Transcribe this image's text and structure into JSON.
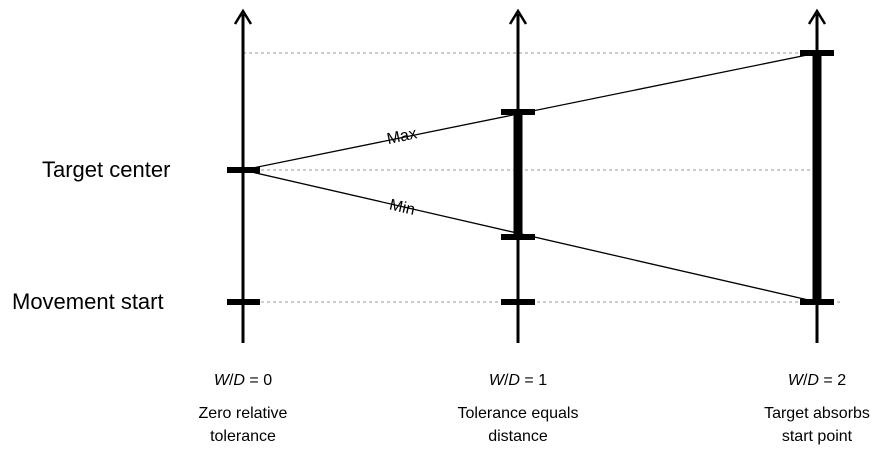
{
  "labels": {
    "target_center": "Target center",
    "movement_start": "Movement start"
  },
  "lines": {
    "max": "Max",
    "min": "Min"
  },
  "columns": [
    {
      "var_w": "W",
      "slash": "/",
      "var_d": "D",
      "eq": " = 0",
      "caption": [
        "Zero relative",
        "tolerance"
      ]
    },
    {
      "var_w": "W",
      "slash": "/",
      "var_d": "D",
      "eq": " = 1",
      "caption": [
        "Tolerance equals",
        "distance"
      ]
    },
    {
      "var_w": "W",
      "slash": "/",
      "var_d": "D",
      "eq": " = 2",
      "caption": [
        "Target absorbs",
        "start point"
      ]
    }
  ]
}
